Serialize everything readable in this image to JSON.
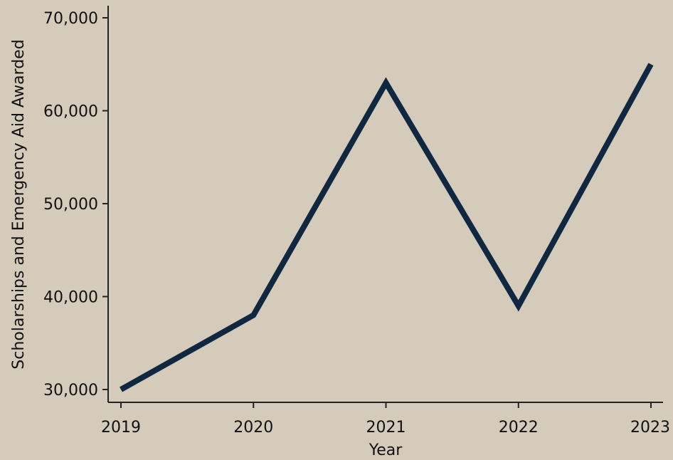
{
  "chart_data": {
    "type": "line",
    "title": "",
    "xlabel": "Year",
    "ylabel": "Scholarships and Emergency Aid Awarded",
    "x": [
      "2019",
      "2020",
      "2021",
      "2022",
      "2023"
    ],
    "series": [
      {
        "values": [
          30000,
          38000,
          63000,
          39000,
          65000
        ]
      }
    ],
    "ylim": [
      28500,
      72000
    ],
    "yticks": [
      30000,
      40000,
      50000,
      60000,
      70000
    ],
    "ytick_labels": [
      "30,000",
      "40,000",
      "50,000",
      "60,000",
      "70,000"
    ],
    "grid": false,
    "legend": "none",
    "colors": {
      "background": "#d5cbbb",
      "line": "#0f2740",
      "axis": "#222222"
    }
  }
}
